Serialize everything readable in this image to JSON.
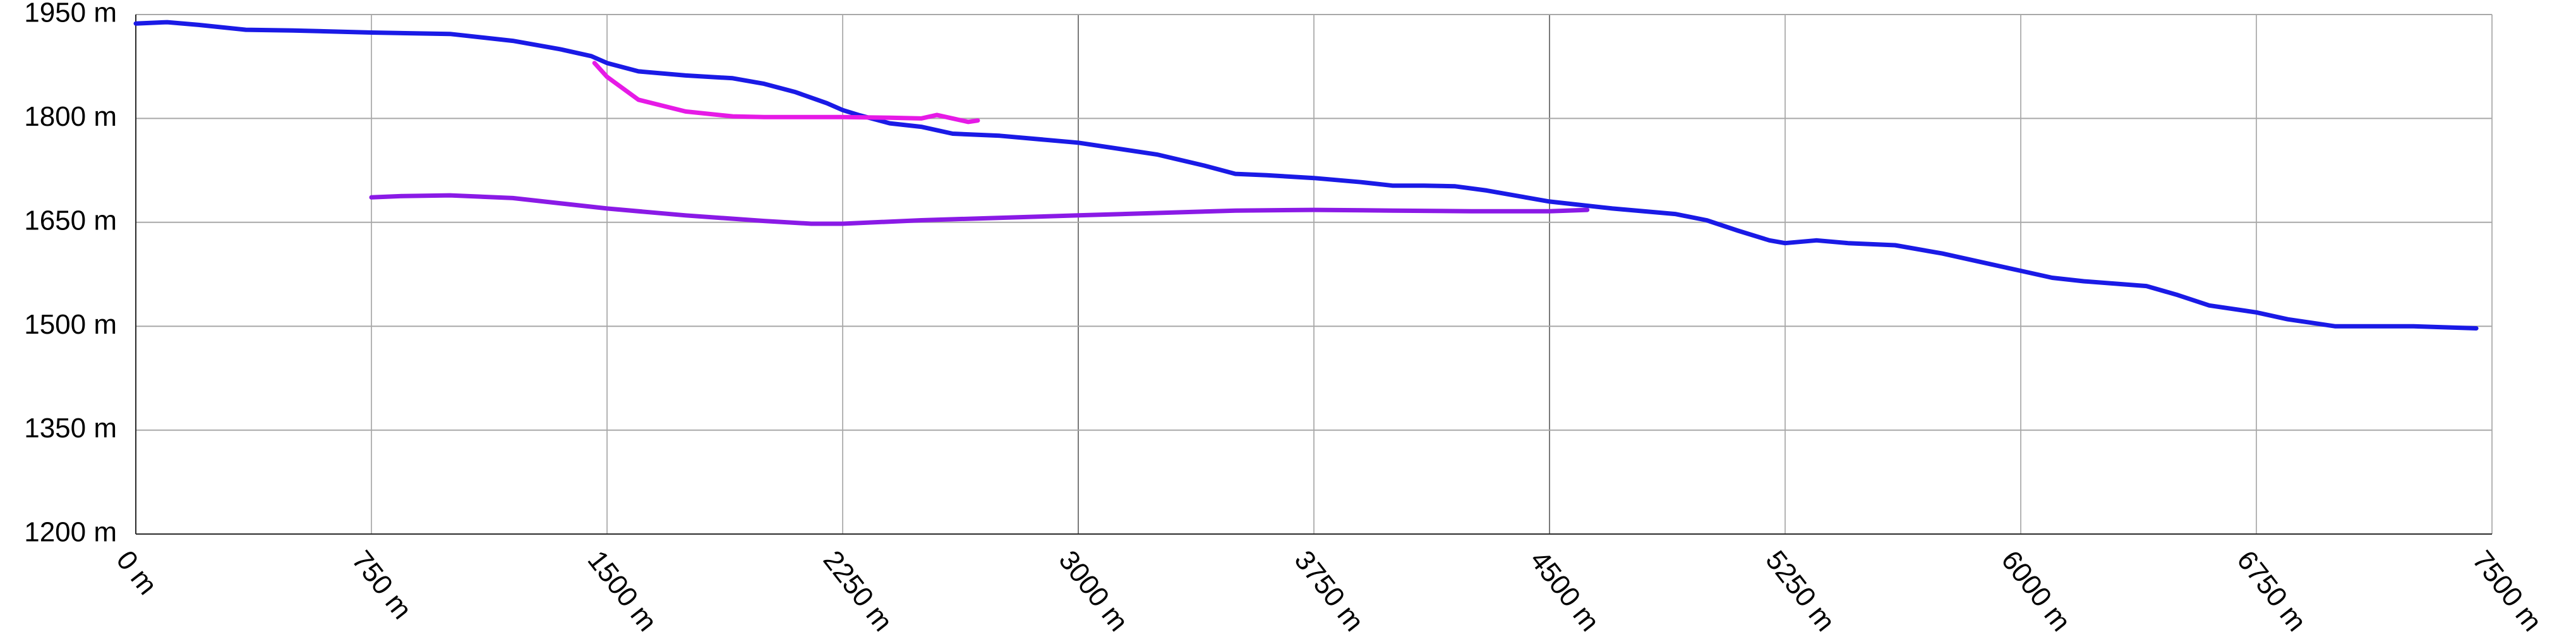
{
  "chart_data": {
    "type": "line",
    "title": "",
    "xlabel": "",
    "ylabel": "",
    "x_unit": "m",
    "y_unit": "m",
    "xlim": [
      0,
      7500
    ],
    "ylim": [
      1200,
      1950
    ],
    "x_ticks": [
      0,
      750,
      1500,
      2250,
      3000,
      3750,
      4500,
      5250,
      6000,
      6750,
      7500
    ],
    "y_ticks": [
      1200,
      1350,
      1500,
      1650,
      1800,
      1950
    ],
    "x_tick_labels": [
      "0 m",
      "750 m",
      "1500 m",
      "2250 m",
      "3000 m",
      "3750 m",
      "4500 m",
      "5250 m",
      "6000 m",
      "6750 m",
      "7500 m"
    ],
    "y_tick_labels": [
      "1200 m",
      "1350 m",
      "1500 m",
      "1650 m",
      "1800 m",
      "1950 m"
    ],
    "grid": true,
    "legend": "none",
    "series": [
      {
        "color": "#1a1ae6",
        "x": [
          0,
          100,
          200,
          350,
          500,
          750,
          1000,
          1200,
          1350,
          1450,
          1500,
          1600,
          1750,
          1900,
          2000,
          2100,
          2200,
          2250,
          2300,
          2400,
          2500,
          2600,
          2750,
          3000,
          3250,
          3400,
          3500,
          3600,
          3750,
          3900,
          4000,
          4100,
          4200,
          4300,
          4400,
          4500,
          4700,
          4900,
          5000,
          5100,
          5200,
          5250,
          5350,
          5450,
          5600,
          5750,
          5900,
          6000,
          6100,
          6200,
          6400,
          6500,
          6600,
          6750,
          6850,
          7000,
          7100,
          7250,
          7450
        ],
        "values": [
          1937,
          1939,
          1935,
          1928,
          1927,
          1924,
          1922,
          1912,
          1900,
          1890,
          1880,
          1868,
          1862,
          1858,
          1850,
          1838,
          1822,
          1812,
          1805,
          1793,
          1788,
          1778,
          1775,
          1765,
          1748,
          1732,
          1720,
          1718,
          1714,
          1708,
          1703,
          1703,
          1702,
          1696,
          1688,
          1680,
          1670,
          1662,
          1653,
          1638,
          1624,
          1620,
          1624,
          1620,
          1617,
          1605,
          1590,
          1580,
          1570,
          1565,
          1558,
          1545,
          1530,
          1520,
          1510,
          1500,
          1500,
          1500,
          1497
        ]
      },
      {
        "color": "#e61ae6",
        "x": [
          1460,
          1500,
          1600,
          1750,
          1900,
          2000,
          2250,
          2400,
          2500,
          2550,
          2600,
          2650,
          2680
        ],
        "values": [
          1880,
          1860,
          1827,
          1810,
          1803,
          1802,
          1802,
          1801,
          1800,
          1805,
          1800,
          1795,
          1797
        ]
      },
      {
        "color": "#8a1ae6",
        "x": [
          750,
          850,
          1000,
          1200,
          1500,
          1750,
          2000,
          2150,
          2250,
          2500,
          3000,
          3500,
          3750,
          4000,
          4250,
          4500,
          4620
        ],
        "values": [
          1686,
          1688,
          1689,
          1685,
          1670,
          1660,
          1652,
          1648,
          1648,
          1653,
          1660,
          1667,
          1668,
          1667,
          1666,
          1666,
          1668
        ]
      }
    ]
  }
}
